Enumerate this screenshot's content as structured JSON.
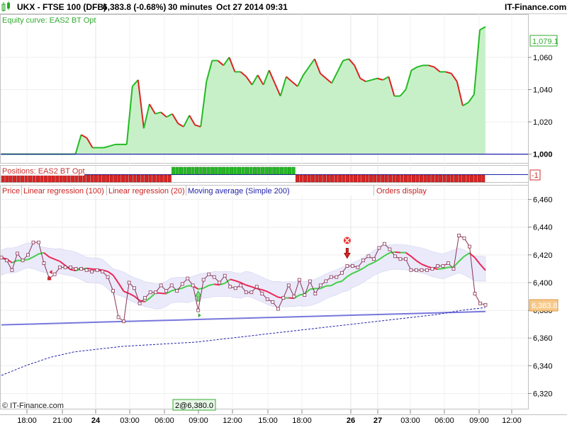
{
  "header": {
    "instrument": "UKX - FTSE 100 (DFB)",
    "price": "6,383.8 (-0.68%)",
    "timeframe": "30 minutes",
    "datetime": "Oct 27 2014 09:31",
    "brand": "IT-Finance.com"
  },
  "panels": {
    "equity_title": "Equity curve: EAS2 BT Opt",
    "equity_last": "1,079.1",
    "positions_title": "Positions: EAS2 BT Opt",
    "positions_last": "-1",
    "price_title": "Price",
    "price_last": "6,383.8",
    "legend": [
      "Linear regression (100)",
      "Linear regression (20)",
      "Moving average (Simple 200)",
      "Orders display"
    ],
    "order_label": "2@6,380.0",
    "copyright": "© IT-Finance.com"
  },
  "colors": {
    "up": "#22bb22",
    "down": "#dd2222",
    "fill": "#c8f0c8",
    "ma": "#2222aa",
    "band": "#ccccf0"
  },
  "chart_data": [
    {
      "type": "area",
      "title": "Equity curve: EAS2 BT Opt",
      "y_ticks": [
        "1,060",
        "1,040",
        "1,020",
        "1,000"
      ],
      "y_tick_values": [
        1060,
        1040,
        1020,
        1000
      ],
      "ylim": [
        995,
        1085
      ],
      "baseline": 1000,
      "values": [
        1000,
        1000,
        1000,
        1000,
        1000,
        1000,
        1000,
        1000,
        1000,
        1000,
        1000,
        1000,
        1000,
        1000,
        1012,
        1010,
        1004,
        1004,
        1004,
        1005,
        1006,
        1006,
        1006,
        1042,
        1046,
        1016,
        1031,
        1025,
        1026,
        1023,
        1025,
        1019,
        1017,
        1024,
        1018,
        1017,
        1045,
        1058,
        1058,
        1055,
        1060,
        1051,
        1051,
        1048,
        1043,
        1049,
        1043,
        1052,
        1044,
        1036,
        1048,
        1045,
        1042,
        1049,
        1054,
        1059,
        1050,
        1047,
        1044,
        1051,
        1058,
        1059,
        1055,
        1047,
        1045,
        1046,
        1047,
        1046,
        1048,
        1036,
        1036,
        1040,
        1052,
        1054,
        1055,
        1055,
        1054,
        1051,
        1051,
        1050,
        1045,
        1030,
        1032,
        1037,
        1077,
        1079
      ]
    },
    {
      "type": "bar",
      "title": "Positions: EAS2 BT Opt",
      "ylim": [
        -1,
        1
      ],
      "values": [
        -1,
        -1,
        -1,
        -1,
        -1,
        -1,
        -1,
        -1,
        -1,
        -1,
        -1,
        -1,
        -1,
        -1,
        -1,
        -1,
        -1,
        -1,
        -1,
        -1,
        -1,
        -1,
        -1,
        -1,
        -1,
        -1,
        -1,
        -1,
        -1,
        -1,
        -1,
        -1,
        -1,
        -1,
        -1,
        -1,
        -1,
        -1,
        -1,
        -1,
        -1,
        -1,
        -1,
        -1,
        1,
        1,
        1,
        1,
        1,
        1,
        1,
        1,
        1,
        1,
        1,
        1,
        1,
        1,
        1,
        1,
        1,
        1,
        1,
        1,
        1,
        1,
        1,
        1,
        1,
        1,
        1,
        1,
        1,
        1,
        1,
        1,
        -1,
        -1,
        -1,
        -1,
        -1,
        -1,
        -1,
        -1,
        -1,
        -1,
        -1,
        -1,
        -1,
        -1,
        -1,
        -1,
        -1,
        -1,
        -1,
        -1,
        -1,
        -1,
        -1,
        -1,
        -1,
        -1,
        -1,
        -1,
        -1,
        -1,
        -1,
        -1,
        -1,
        -1,
        -1,
        -1,
        -1,
        -1,
        -1,
        -1,
        -1,
        -1,
        -1,
        -1,
        -1,
        -1,
        -1,
        -1,
        -1
      ]
    },
    {
      "type": "line",
      "title": "Price",
      "series": [
        {
          "name": "Price",
          "values": [
            6418,
            6416,
            6409,
            6421,
            6416,
            6420,
            6429,
            6429,
            6414,
            6403,
            6406,
            6411,
            6411,
            6411,
            6410,
            6410,
            6409,
            6408,
            6409,
            6408,
            6404,
            6394,
            6375,
            6372,
            6400,
            6396,
            6385,
            6389,
            6393,
            6393,
            6398,
            6394,
            6398,
            6394,
            6399,
            6403,
            6398,
            6380,
            6402,
            6406,
            6404,
            6400,
            6405,
            6397,
            6396,
            6398,
            6393,
            6393,
            6397,
            6392,
            6388,
            6386,
            6381,
            6389,
            6398,
            6390,
            6402,
            6391,
            6401,
            6392,
            6398,
            6401,
            6404,
            6404,
            6407,
            6412,
            6412,
            6411,
            6416,
            6419,
            6417,
            6425,
            6428,
            6424,
            6419,
            6417,
            6417,
            6409,
            6409,
            6409,
            6409,
            6410,
            6412,
            6412,
            6414,
            6410,
            6434,
            6432,
            6426,
            6392,
            6385,
            6384
          ]
        },
        {
          "name": "Linear regression (100)",
          "values": [
            6369.5,
            6370.3,
            6371.1,
            6371.9,
            6372.7,
            6373.5,
            6374.3,
            6375.1,
            6375.9,
            6376.7,
            6377.5,
            6378.3,
            6379.1
          ]
        },
        {
          "name": "Moving average (Simple 200)",
          "values": [
            6333,
            6340,
            6346,
            6350,
            6352,
            6354,
            6355,
            6356,
            6357,
            6359,
            6361,
            6363,
            6365,
            6367,
            6369,
            6371,
            6373,
            6375,
            6377,
            6380,
            6382
          ]
        }
      ],
      "y_ticks": [
        "6,460",
        "6,440",
        "6,420",
        "6,400",
        "6,380",
        "6,360",
        "6,340",
        "6,320"
      ],
      "y_tick_values": [
        6460,
        6440,
        6420,
        6400,
        6380,
        6360,
        6340,
        6320
      ],
      "ylim": [
        6309,
        6470
      ],
      "x_ticks": [
        "18:00",
        "21:00",
        "24",
        "03:00",
        "06:00",
        "09:00",
        "12:00",
        "15:00",
        "18:00",
        "26",
        "27",
        "03:00",
        "06:00",
        "09:00",
        "12:00"
      ],
      "x_tick_bold": [
        false,
        false,
        true,
        false,
        false,
        false,
        false,
        false,
        false,
        true,
        true,
        false,
        false,
        false,
        false
      ]
    }
  ]
}
